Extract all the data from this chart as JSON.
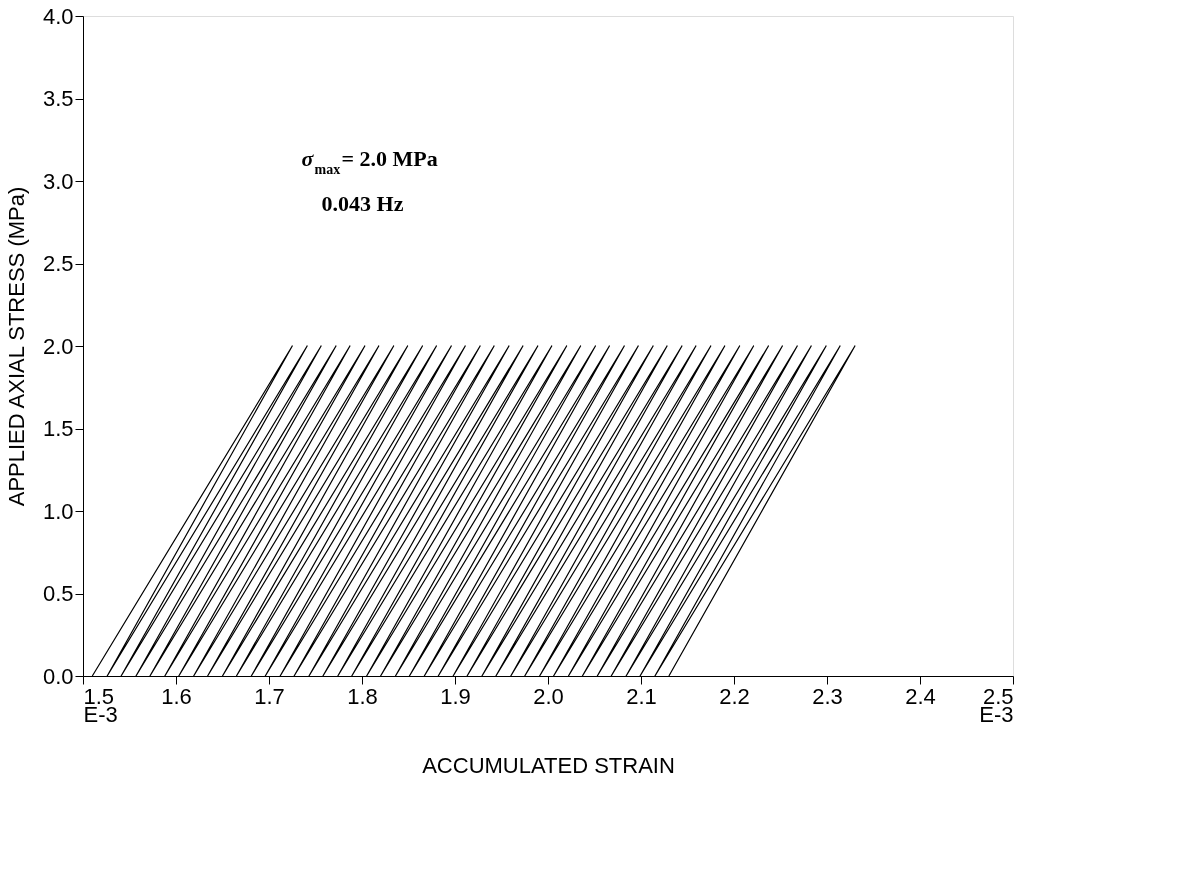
{
  "chart_data": {
    "type": "line",
    "xlabel": "ACCUMULATED STRAIN",
    "ylabel": "APPLIED AXIAL STRESS (MPa)",
    "annotations": [
      "σ$_{max}$= 2.0 MPa",
      "0.043 Hz"
    ],
    "xlim": [
      1.5,
      2.5
    ],
    "ylim": [
      0,
      4
    ],
    "xticks": [
      {
        "value": 1.5,
        "label": "1.5\nE-3"
      },
      1.6,
      1.7,
      1.8,
      1.9,
      {
        "value": 2.0,
        "label": "2.0"
      },
      2.1,
      2.2,
      2.3,
      2.4,
      {
        "value": 2.5,
        "label": "2.5\nE-3"
      }
    ],
    "yticks": [
      {
        "value": 0,
        "label": "0.0"
      },
      0.5,
      {
        "value": 1,
        "label": "1.0"
      },
      1.5,
      {
        "value": 2,
        "label": "2.0"
      },
      2.5,
      {
        "value": 3,
        "label": "3.0"
      },
      3.5,
      {
        "value": 4,
        "label": "4.0"
      }
    ],
    "grid": false,
    "marker": "none",
    "line_style": "solid",
    "series": [
      {
        "color": "#000000",
        "x": [
          1.51,
          1.725,
          1.526,
          1.741,
          1.541,
          1.756,
          1.557,
          1.772,
          1.572,
          1.787,
          1.588,
          1.803,
          1.603,
          1.818,
          1.619,
          1.834,
          1.634,
          1.849,
          1.65,
          1.865,
          1.665,
          1.88,
          1.681,
          1.896,
          1.696,
          1.911,
          1.712,
          1.927,
          1.727,
          1.942,
          1.743,
          1.958,
          1.758,
          1.973,
          1.774,
          1.989,
          1.789,
          2.004,
          1.805,
          2.02,
          1.82,
          2.035,
          1.836,
          2.051,
          1.851,
          2.066,
          1.867,
          2.082,
          1.882,
          2.097,
          1.898,
          2.113,
          1.913,
          2.128,
          1.929,
          2.144,
          1.944,
          2.159,
          1.96,
          2.175,
          1.975,
          2.19,
          1.991,
          2.206,
          2.006,
          2.221,
          2.022,
          2.237,
          2.037,
          2.252,
          2.053,
          2.268,
          2.068,
          2.283,
          2.084,
          2.299,
          2.099,
          2.314,
          2.115,
          2.33,
          2.13
        ],
        "values": [
          0,
          2,
          0,
          2,
          0,
          2,
          0,
          2,
          0,
          2,
          0,
          2,
          0,
          2,
          0,
          2,
          0,
          2,
          0,
          2,
          0,
          2,
          0,
          2,
          0,
          2,
          0,
          2,
          0,
          2,
          0,
          2,
          0,
          2,
          0,
          2,
          0,
          2,
          0,
          2,
          0,
          2,
          0,
          2,
          0,
          2,
          0,
          2,
          0,
          2,
          0,
          2,
          0,
          2,
          0,
          2,
          0,
          2,
          0,
          2,
          0,
          2,
          0,
          2,
          0,
          2,
          0,
          2,
          0,
          2,
          0,
          2,
          0,
          2,
          0,
          2,
          0,
          2,
          0,
          2,
          0
        ]
      }
    ]
  }
}
